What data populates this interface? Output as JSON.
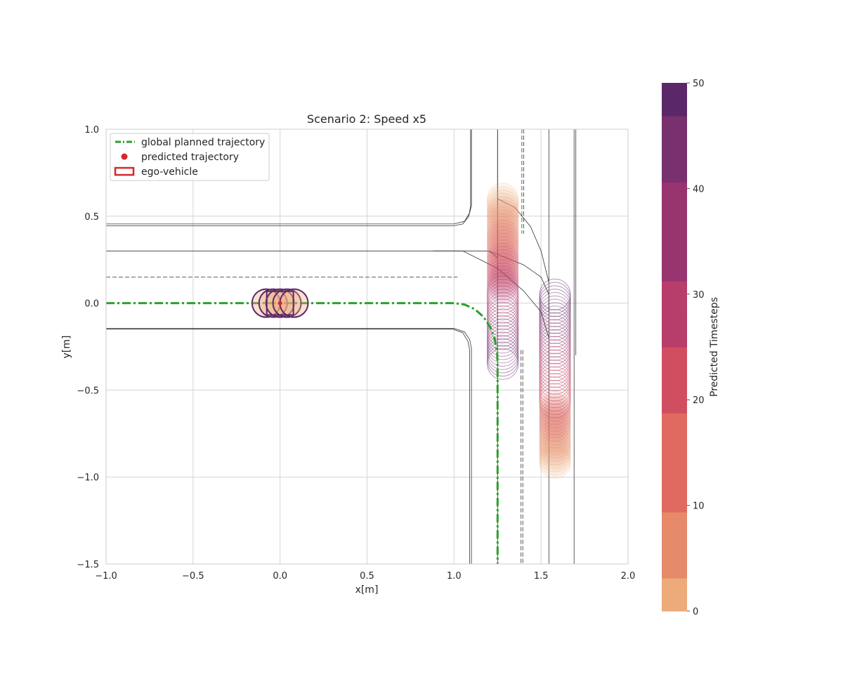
{
  "colors": {
    "global_trajectory": "#2ca02c",
    "predicted_point": "#d62728",
    "ego_box": "#d62728",
    "grid": "#d5d5d5",
    "road_line": "#333333",
    "colormap": [
      "#edaa7a",
      "#e68a6a",
      "#e06a5f",
      "#d14e60",
      "#b83d6a",
      "#98346f",
      "#78306e",
      "#5a2868"
    ]
  },
  "chart_data": {
    "type": "scatter",
    "title": "Scenario 2: Speed x5",
    "xlabel": "x[m]",
    "ylabel": "y[m]",
    "xlim": [
      -1.0,
      2.0
    ],
    "ylim": [
      -1.5,
      1.0
    ],
    "xticks": [
      -1.0,
      -0.5,
      0.0,
      0.5,
      1.0,
      1.5,
      2.0
    ],
    "xtick_labels": [
      "−1.0",
      "−0.5",
      "0.0",
      "0.5",
      "1.0",
      "1.5",
      "2.0"
    ],
    "yticks": [
      -1.5,
      -1.0,
      -0.5,
      0.0,
      0.5,
      1.0
    ],
    "ytick_labels": [
      "−1.5",
      "−1.0",
      "−0.5",
      "0.0",
      "0.5",
      "1.0"
    ],
    "grid": true,
    "legend_position": "top-left",
    "legend": [
      {
        "label": "global planned trajectory",
        "marker": "dashdot-line"
      },
      {
        "label": "predicted trajectory",
        "marker": "dot"
      },
      {
        "label": "ego-vehicle",
        "marker": "rectangle"
      }
    ],
    "global_planned_trajectory": [
      [
        -1.0,
        0.0
      ],
      [
        1.0,
        0.0
      ],
      [
        1.06,
        -0.008
      ],
      [
        1.12,
        -0.035
      ],
      [
        1.17,
        -0.08
      ],
      [
        1.21,
        -0.14
      ],
      [
        1.235,
        -0.21
      ],
      [
        1.248,
        -0.29
      ],
      [
        1.25,
        -0.36
      ],
      [
        1.25,
        -1.5
      ]
    ],
    "ego_vehicle": {
      "x": 0.0,
      "y": 0.0,
      "length": 0.25,
      "width": 0.16
    },
    "predicted_trajectory_ego": {
      "x_start": -0.08,
      "x_end": 0.08,
      "y": 0.0,
      "steps": 50
    },
    "agent_1_prediction": {
      "x": 1.28,
      "y_start": 0.6,
      "y_end": -0.35,
      "steps": 50
    },
    "agent_2_prediction": {
      "x": 1.58,
      "y_start": -0.92,
      "y_end": 0.05,
      "steps": 50
    },
    "road_lines_solid": [
      [
        [
          -1.0,
          0.455
        ],
        [
          1.0,
          0.455
        ],
        [
          1.06,
          0.47
        ],
        [
          1.09,
          0.52
        ],
        [
          1.1,
          0.56
        ],
        [
          1.1,
          1.0
        ]
      ],
      [
        [
          -1.0,
          0.445
        ],
        [
          1.0,
          0.445
        ],
        [
          1.05,
          0.455
        ],
        [
          1.085,
          0.5
        ],
        [
          1.095,
          0.56
        ],
        [
          1.095,
          1.0
        ]
      ],
      [
        [
          -1.0,
          0.3
        ],
        [
          1.2,
          0.3
        ],
        [
          1.25,
          0.26
        ],
        [
          1.25,
          1.0
        ]
      ],
      [
        [
          -1.0,
          -0.145
        ],
        [
          1.0,
          -0.145
        ],
        [
          1.06,
          -0.165
        ],
        [
          1.09,
          -0.21
        ],
        [
          1.1,
          -0.26
        ],
        [
          1.1,
          -1.5
        ]
      ],
      [
        [
          -1.0,
          -0.15
        ],
        [
          0.995,
          -0.15
        ],
        [
          1.05,
          -0.17
        ],
        [
          1.08,
          -0.22
        ],
        [
          1.09,
          -0.27
        ],
        [
          1.09,
          -1.5
        ]
      ],
      [
        [
          1.25,
          1.0
        ],
        [
          1.25,
          -1.5
        ]
      ],
      [
        [
          1.545,
          1.0
        ],
        [
          1.545,
          -1.5
        ]
      ],
      [
        [
          1.69,
          1.0
        ],
        [
          1.69,
          -1.5
        ]
      ],
      [
        [
          1.7,
          1.0
        ],
        [
          1.7,
          -0.3
        ]
      ],
      [
        [
          0.88,
          0.3
        ],
        [
          1.05,
          0.3
        ],
        [
          1.25,
          0.2
        ],
        [
          1.4,
          0.07
        ],
        [
          1.5,
          -0.05
        ],
        [
          1.545,
          -0.2
        ]
      ],
      [
        [
          1.2,
          0.3
        ],
        [
          1.4,
          0.22
        ],
        [
          1.5,
          0.15
        ],
        [
          1.545,
          0.05
        ],
        [
          1.545,
          -0.05
        ]
      ],
      [
        [
          1.25,
          0.6
        ],
        [
          1.35,
          0.55
        ],
        [
          1.44,
          0.44
        ],
        [
          1.5,
          0.3
        ],
        [
          1.545,
          0.12
        ]
      ]
    ],
    "road_lines_dashed": [
      [
        [
          -1.0,
          0.15
        ],
        [
          1.02,
          0.15
        ]
      ],
      [
        [
          1.39,
          1.0
        ],
        [
          1.39,
          0.4
        ]
      ],
      [
        [
          1.4,
          1.0
        ],
        [
          1.4,
          0.4
        ]
      ],
      [
        [
          1.385,
          -0.27
        ],
        [
          1.385,
          -1.5
        ]
      ],
      [
        [
          1.395,
          -0.27
        ],
        [
          1.395,
          -1.5
        ]
      ]
    ],
    "colorbar": {
      "label": "Predicted Timesteps",
      "range": [
        0,
        50
      ],
      "ticks": [
        0,
        10,
        20,
        30,
        40,
        50
      ],
      "tick_labels": [
        "0",
        "10",
        "20",
        "30",
        "40",
        "50"
      ]
    }
  }
}
